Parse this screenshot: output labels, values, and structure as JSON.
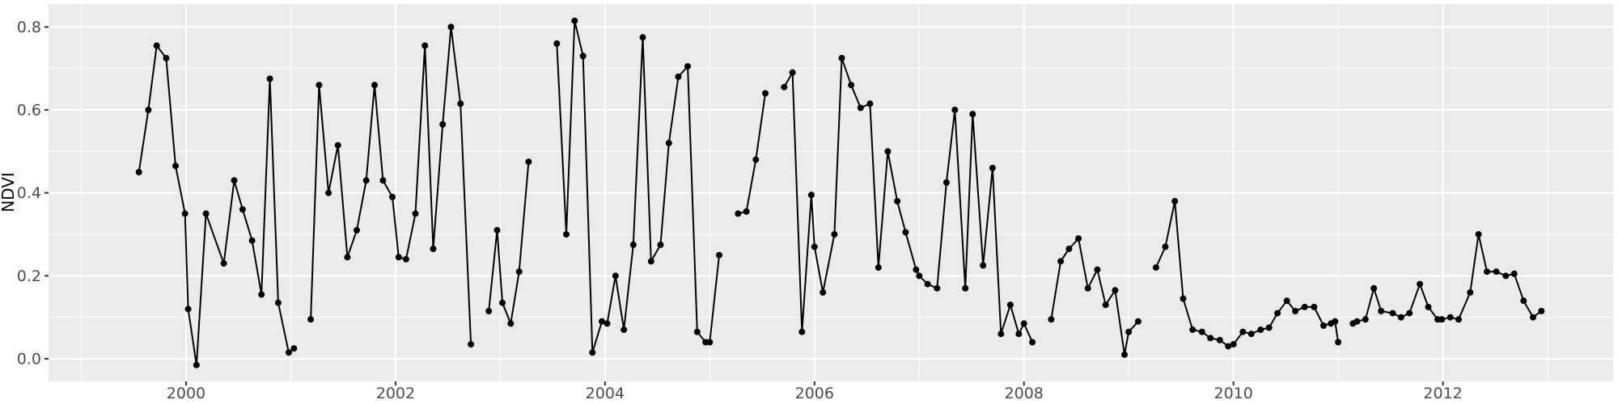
{
  "chart_data": {
    "type": "line",
    "title": "",
    "xlabel": "",
    "ylabel": "NDVI",
    "legend": "none",
    "grid": true,
    "x_ticks": [
      2000,
      2002,
      2004,
      2006,
      2008,
      2010,
      2012
    ],
    "x_tick_labels": [
      "2000",
      "2002",
      "2004",
      "2006",
      "2008",
      "2010",
      "2012"
    ],
    "x_minor_ticks": [
      1999,
      2001,
      2003,
      2005,
      2007,
      2009,
      2011,
      2013
    ],
    "y_ticks": [
      0.0,
      0.2,
      0.4,
      0.6,
      0.8
    ],
    "y_tick_labels": [
      "0.0",
      "0.2",
      "0.4",
      "0.6",
      "0.8"
    ],
    "y_minor_ticks": [
      0.1,
      0.3,
      0.5,
      0.7
    ],
    "xlim": [
      1998.687,
      2013.625
    ],
    "ylim": [
      -0.0545,
      0.8553
    ],
    "series": [
      {
        "name": "NDVI",
        "marker": "point",
        "segments": [
          [
            [
              1999.55,
              0.45
            ],
            [
              1999.64,
              0.6
            ],
            [
              1999.72,
              0.755
            ],
            [
              1999.81,
              0.725
            ],
            [
              1999.9,
              0.465
            ],
            [
              1999.99,
              0.35
            ],
            [
              2000.02,
              0.12
            ],
            [
              2000.1,
              -0.015
            ],
            [
              2000.19,
              0.35
            ],
            [
              2000.36,
              0.23
            ],
            [
              2000.46,
              0.43
            ],
            [
              2000.54,
              0.36
            ],
            [
              2000.63,
              0.285
            ],
            [
              2000.72,
              0.155
            ],
            [
              2000.8,
              0.675
            ],
            [
              2000.88,
              0.135
            ],
            [
              2000.98,
              0.015
            ],
            [
              2001.03,
              0.025
            ]
          ],
          [
            [
              2001.19,
              0.095
            ],
            [
              2001.27,
              0.66
            ],
            [
              2001.36,
              0.4
            ],
            [
              2001.45,
              0.515
            ],
            [
              2001.54,
              0.245
            ],
            [
              2001.63,
              0.31
            ],
            [
              2001.72,
              0.43
            ],
            [
              2001.8,
              0.66
            ],
            [
              2001.88,
              0.43
            ],
            [
              2001.97,
              0.39
            ],
            [
              2002.03,
              0.245
            ],
            [
              2002.1,
              0.24
            ],
            [
              2002.19,
              0.35
            ],
            [
              2002.28,
              0.755
            ],
            [
              2002.36,
              0.265
            ],
            [
              2002.45,
              0.565
            ],
            [
              2002.53,
              0.8
            ],
            [
              2002.62,
              0.615
            ],
            [
              2002.72,
              0.035
            ]
          ],
          [
            [
              2002.89,
              0.115
            ],
            [
              2002.97,
              0.31
            ],
            [
              2003.02,
              0.135
            ],
            [
              2003.1,
              0.085
            ],
            [
              2003.18,
              0.21
            ],
            [
              2003.27,
              0.475
            ]
          ],
          [
            [
              2003.54,
              0.76
            ],
            [
              2003.63,
              0.3
            ],
            [
              2003.71,
              0.815
            ],
            [
              2003.79,
              0.73
            ],
            [
              2003.88,
              0.015
            ],
            [
              2003.97,
              0.09
            ],
            [
              2004.02,
              0.085
            ],
            [
              2004.1,
              0.2
            ],
            [
              2004.18,
              0.07
            ],
            [
              2004.27,
              0.275
            ],
            [
              2004.36,
              0.775
            ],
            [
              2004.44,
              0.235
            ],
            [
              2004.53,
              0.275
            ],
            [
              2004.61,
              0.52
            ],
            [
              2004.7,
              0.68
            ],
            [
              2004.79,
              0.705
            ],
            [
              2004.88,
              0.065
            ],
            [
              2004.96,
              0.04
            ],
            [
              2005.0,
              0.04
            ],
            [
              2005.09,
              0.25
            ]
          ],
          [
            [
              2005.27,
              0.35
            ],
            [
              2005.35,
              0.355
            ],
            [
              2005.44,
              0.48
            ],
            [
              2005.53,
              0.64
            ]
          ],
          [
            [
              2005.71,
              0.655
            ],
            [
              2005.79,
              0.69
            ],
            [
              2005.88,
              0.065
            ],
            [
              2005.97,
              0.395
            ],
            [
              2006.0,
              0.27
            ],
            [
              2006.08,
              0.16
            ],
            [
              2006.19,
              0.3
            ],
            [
              2006.26,
              0.725
            ],
            [
              2006.35,
              0.66
            ],
            [
              2006.44,
              0.605
            ],
            [
              2006.53,
              0.615
            ],
            [
              2006.61,
              0.22
            ],
            [
              2006.7,
              0.5
            ],
            [
              2006.79,
              0.38
            ],
            [
              2006.87,
              0.305
            ],
            [
              2006.97,
              0.215
            ],
            [
              2007.0,
              0.2
            ],
            [
              2007.08,
              0.18
            ],
            [
              2007.17,
              0.17
            ],
            [
              2007.26,
              0.425
            ],
            [
              2007.34,
              0.6
            ],
            [
              2007.44,
              0.17
            ],
            [
              2007.51,
              0.59
            ],
            [
              2007.61,
              0.225
            ],
            [
              2007.7,
              0.46
            ],
            [
              2007.78,
              0.06
            ],
            [
              2007.87,
              0.13
            ],
            [
              2007.95,
              0.06
            ],
            [
              2008.0,
              0.085
            ],
            [
              2008.08,
              0.04
            ]
          ],
          [
            [
              2008.26,
              0.095
            ],
            [
              2008.35,
              0.235
            ],
            [
              2008.43,
              0.265
            ],
            [
              2008.52,
              0.29
            ],
            [
              2008.61,
              0.17
            ],
            [
              2008.7,
              0.215
            ],
            [
              2008.78,
              0.13
            ],
            [
              2008.87,
              0.165
            ],
            [
              2008.96,
              0.01
            ],
            [
              2009.0,
              0.065
            ],
            [
              2009.09,
              0.09
            ]
          ],
          [
            [
              2009.26,
              0.22
            ],
            [
              2009.35,
              0.27
            ],
            [
              2009.44,
              0.38
            ],
            [
              2009.52,
              0.145
            ],
            [
              2009.61,
              0.07
            ],
            [
              2009.7,
              0.065
            ],
            [
              2009.78,
              0.05
            ],
            [
              2009.87,
              0.045
            ],
            [
              2009.95,
              0.03
            ],
            [
              2010.0,
              0.035
            ],
            [
              2010.09,
              0.065
            ],
            [
              2010.17,
              0.06
            ],
            [
              2010.26,
              0.07
            ],
            [
              2010.34,
              0.075
            ],
            [
              2010.42,
              0.11
            ],
            [
              2010.51,
              0.14
            ],
            [
              2010.59,
              0.115
            ],
            [
              2010.68,
              0.125
            ],
            [
              2010.77,
              0.125
            ],
            [
              2010.86,
              0.08
            ],
            [
              2010.93,
              0.085
            ],
            [
              2010.97,
              0.09
            ],
            [
              2011.0,
              0.04
            ]
          ],
          [
            [
              2011.14,
              0.085
            ],
            [
              2011.18,
              0.09
            ],
            [
              2011.26,
              0.095
            ],
            [
              2011.34,
              0.17
            ],
            [
              2011.41,
              0.115
            ],
            [
              2011.52,
              0.11
            ],
            [
              2011.6,
              0.1
            ],
            [
              2011.68,
              0.11
            ],
            [
              2011.78,
              0.18
            ],
            [
              2011.86,
              0.125
            ],
            [
              2011.95,
              0.095
            ],
            [
              2011.99,
              0.095
            ],
            [
              2012.07,
              0.1
            ],
            [
              2012.15,
              0.095
            ],
            [
              2012.26,
              0.16
            ],
            [
              2012.34,
              0.3
            ],
            [
              2012.42,
              0.21
            ],
            [
              2012.51,
              0.21
            ],
            [
              2012.6,
              0.2
            ],
            [
              2012.68,
              0.205
            ],
            [
              2012.77,
              0.14
            ],
            [
              2012.86,
              0.1
            ],
            [
              2012.94,
              0.115
            ]
          ]
        ]
      }
    ]
  },
  "style": {
    "page_background": "#FFFFFF",
    "panel_background": "#EBEBEB",
    "grid_color": "#FFFFFF",
    "line_color": "#000000",
    "point_color": "#000000",
    "tick_label_color": "#4D4D4D",
    "axis_title_color": "#000000",
    "tick_mark_color": "#333333"
  }
}
